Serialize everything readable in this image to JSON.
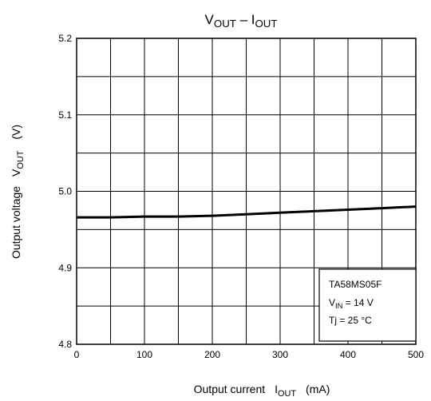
{
  "chart_data": {
    "type": "line",
    "title": {
      "main": "V",
      "main_sub": "OUT",
      "sep": " – I",
      "sep_sub": "OUT"
    },
    "xlabel": {
      "text": "Output current",
      "sym": "I",
      "sym_sub": "OUT",
      "unit": "(mA)"
    },
    "ylabel": {
      "text": "Output voltage",
      "sym": "V",
      "sym_sub": "OUT",
      "unit": "(V)"
    },
    "xlim": [
      0,
      500
    ],
    "ylim": [
      4.8,
      5.2
    ],
    "x_ticks": [
      0,
      100,
      200,
      300,
      400,
      500
    ],
    "x_tick_labels": [
      "0",
      "100",
      "200",
      "300",
      "400",
      "500"
    ],
    "y_ticks": [
      4.8,
      4.9,
      5.0,
      5.1,
      5.2
    ],
    "y_tick_labels": [
      "4.8",
      "4.9",
      "5.0",
      "5.1",
      "5.2"
    ],
    "x_minor_step": 50,
    "y_minor_step": 0.05,
    "grid": true,
    "series": [
      {
        "x": [
          0,
          50,
          100,
          150,
          200,
          250,
          300,
          350,
          400,
          450,
          500
        ],
        "y": [
          4.966,
          4.966,
          4.967,
          4.967,
          4.968,
          4.97,
          4.972,
          4.974,
          4.976,
          4.978,
          4.98
        ],
        "color": "#000000"
      }
    ],
    "legend": {
      "position": "bottom-right",
      "device": "TA58MS05F",
      "vin_sym": "V",
      "vin_sub": "IN",
      "vin_val": " = 14 V",
      "tj": "Tj = 25 °C"
    }
  }
}
